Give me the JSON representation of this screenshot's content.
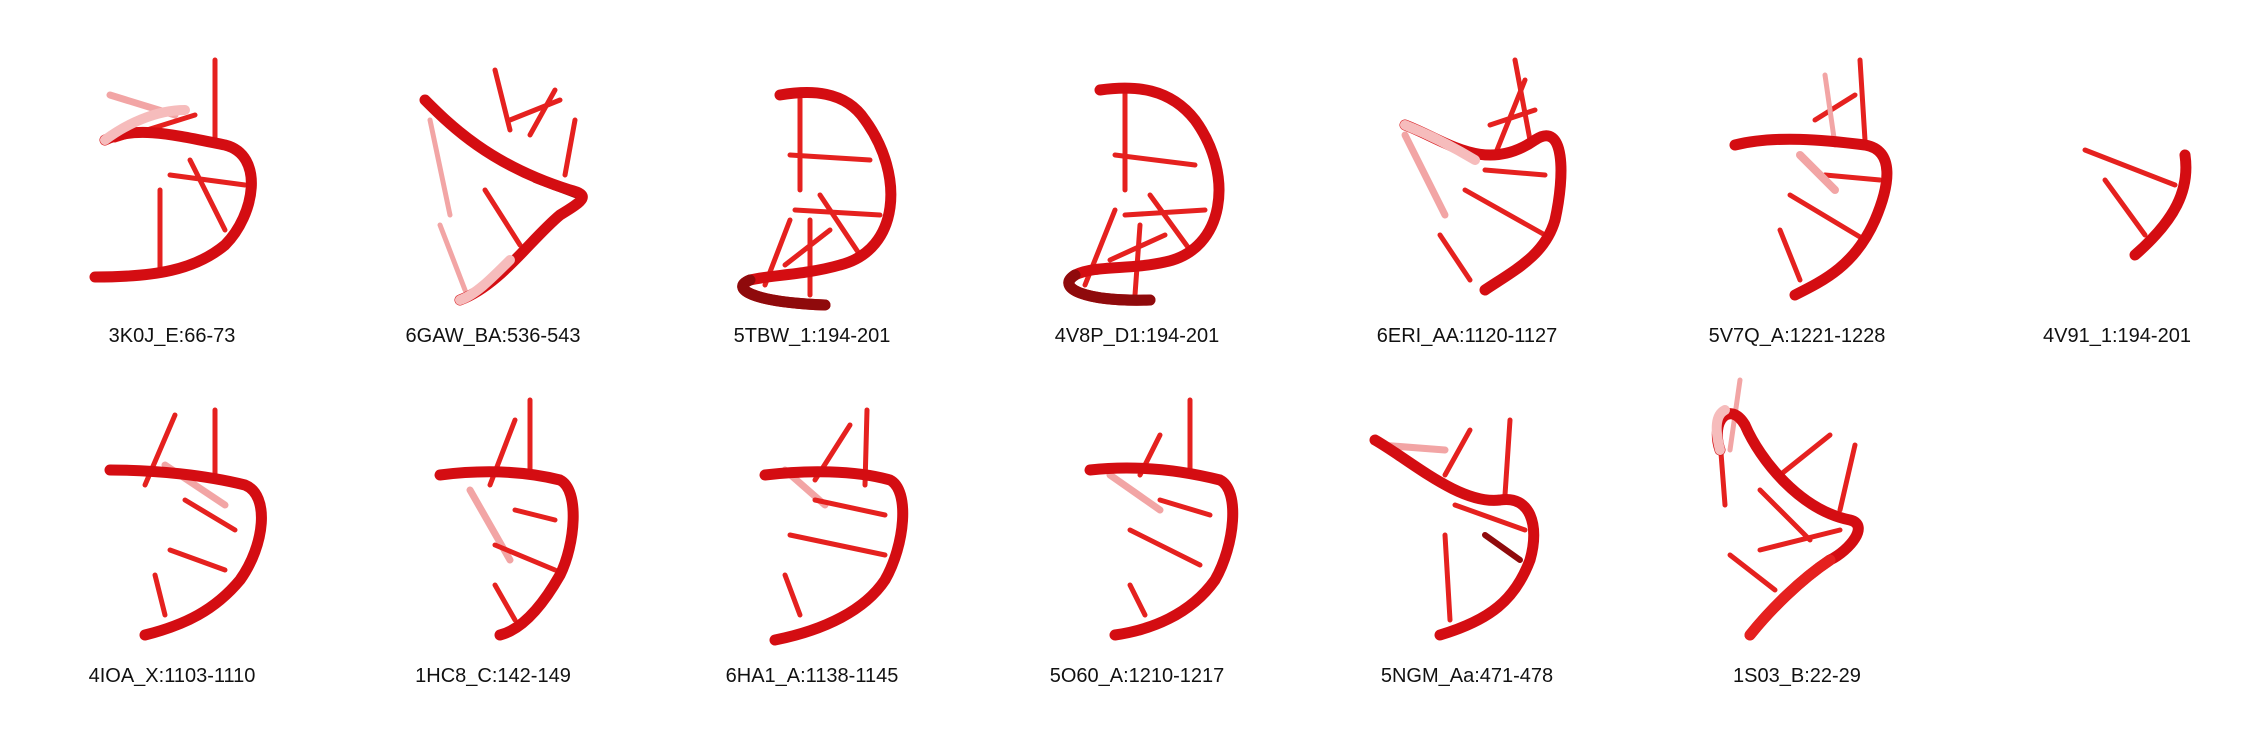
{
  "colors": {
    "backbone": "#d40d12",
    "backbone_dark": "#8f0a0c",
    "rung": "#e5211f",
    "rung_faded": "#ef9a9a",
    "label_text": "#111111",
    "background": "#ffffff"
  },
  "structures": [
    {
      "label": "3K0J_E:66-73",
      "shape": "hook-left"
    },
    {
      "label": "6GAW_BA:536-543",
      "shape": "diagonal-down"
    },
    {
      "label": "5TBW_1:194-201",
      "shape": "d-loop"
    },
    {
      "label": "4V8P_D1:194-201",
      "shape": "d-loop"
    },
    {
      "label": "6ERI_AA:1120-1127",
      "shape": "hook-left"
    },
    {
      "label": "5V7Q_A:1221-1228",
      "shape": "hook-left"
    },
    {
      "label": "4V91_1:194-201",
      "shape": "fragment"
    },
    {
      "label": "4IOA_X:1103-1110",
      "shape": "hook-left"
    },
    {
      "label": "1HC8_C:142-149",
      "shape": "hook-left"
    },
    {
      "label": "6HA1_A:1138-1145",
      "shape": "hook-left"
    },
    {
      "label": "5O60_A:1210-1217",
      "shape": "hook-left"
    },
    {
      "label": "5NGM_Aa:471-478",
      "shape": "diagonal-down"
    },
    {
      "label": "1S03_B:22-29",
      "shape": "twisted"
    }
  ]
}
